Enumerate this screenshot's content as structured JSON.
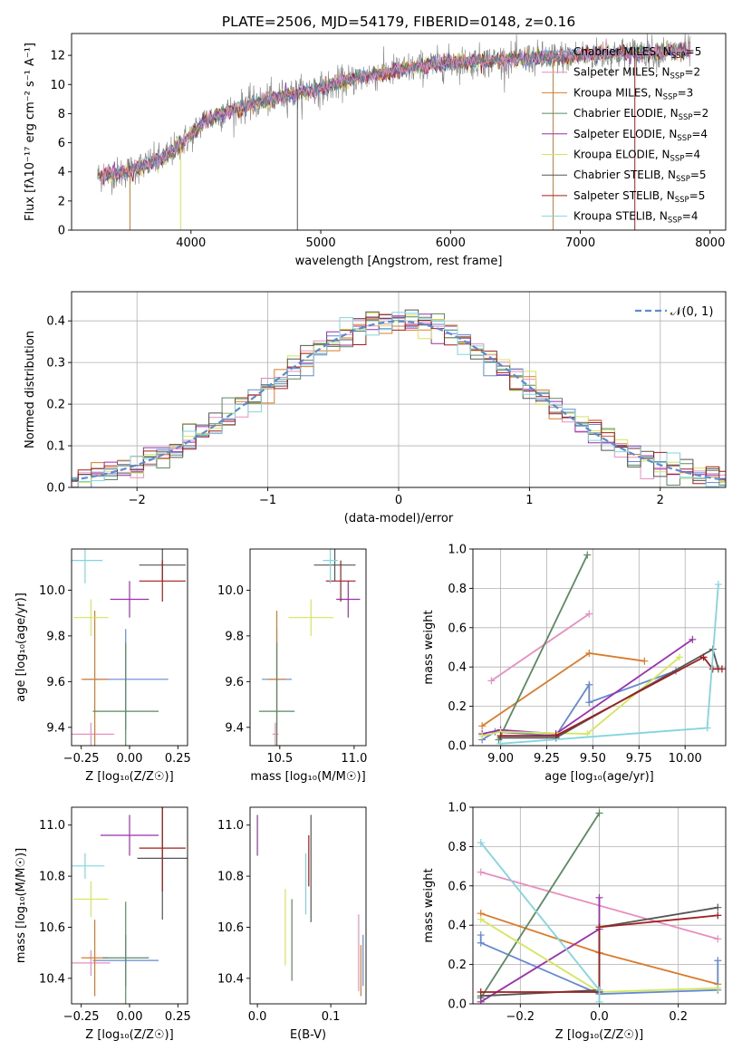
{
  "title": "PLATE=2506, MJD=54179, FIBERID=0148, z=0.16",
  "colors": [
    "#ee8a2e",
    "#db7b2a",
    "#e8e98a",
    "#2f7d4a",
    "#9b2fae",
    "#d4e65a",
    "#555555",
    "#a11e1e",
    "#7fd6e0",
    "#e88fbf",
    "#6488d6"
  ],
  "legend": [
    {
      "label": "Chabrier MILES, N",
      "sub": "SSP",
      "tail": "=5",
      "color": "#6488d6"
    },
    {
      "label": "Salpeter MILES, N",
      "sub": "SSP",
      "tail": "=2",
      "color": "#e88fbf"
    },
    {
      "label": "Kroupa MILES, N",
      "sub": "SSP",
      "tail": "=3",
      "color": "#db7b2a"
    },
    {
      "label": "Chabrier ELODIE, N",
      "sub": "SSP",
      "tail": "=2",
      "color": "#5a8a5f"
    },
    {
      "label": "Salpeter ELODIE, N",
      "sub": "SSP",
      "tail": "=4",
      "color": "#9b2fae"
    },
    {
      "label": "Kroupa ELODIE, N",
      "sub": "SSP",
      "tail": "=4",
      "color": "#d4e65a"
    },
    {
      "label": "Chabrier STELIB, N",
      "sub": "SSP",
      "tail": "=5",
      "color": "#555555"
    },
    {
      "label": "Salpeter STELIB, N",
      "sub": "SSP",
      "tail": "=5",
      "color": "#a11e1e"
    },
    {
      "label": "Kroupa STELIB, N",
      "sub": "SSP",
      "tail": "=4",
      "color": "#7fd6e0"
    }
  ],
  "chart_data": [
    {
      "type": "line",
      "id": "spectrum",
      "xlabel": "wavelength [Angstrom, rest frame]",
      "ylabel": "Flux [fλ10⁻¹⁷ erg cm⁻² s⁻¹ A⁻¹]",
      "xlim": [
        3080,
        8120
      ],
      "ylim": [
        0,
        13.5
      ],
      "xticks": [
        4000,
        5000,
        6000,
        7000,
        8000
      ],
      "yticks": [
        0,
        2,
        4,
        6,
        8,
        10,
        12
      ],
      "x_range": [
        3280,
        7850
      ],
      "continuum": [
        [
          3280,
          3.7
        ],
        [
          3500,
          4.0
        ],
        [
          3800,
          5.0
        ],
        [
          4000,
          6.5
        ],
        [
          4100,
          7.5
        ],
        [
          4400,
          8.5
        ],
        [
          4700,
          9.2
        ],
        [
          5000,
          9.7
        ],
        [
          5300,
          10.5
        ],
        [
          5600,
          11.0
        ],
        [
          6000,
          11.5
        ],
        [
          6500,
          11.7
        ],
        [
          7000,
          12.0
        ],
        [
          7500,
          12.2
        ],
        [
          7850,
          12.3
        ]
      ]
    },
    {
      "type": "line",
      "id": "residual-hist",
      "xlabel": "(data-model)/error",
      "ylabel": "Normed distribution",
      "xlim": [
        -2.5,
        2.5
      ],
      "ylim": [
        0,
        0.47
      ],
      "xticks": [
        -2,
        -1,
        0,
        1,
        2
      ],
      "xticklabels": [
        "−2",
        "−1",
        "0",
        "1",
        "2"
      ],
      "yticks": [
        0,
        0.1,
        0.2,
        0.3,
        0.4
      ],
      "yticklabels": [
        "0.0",
        "0.1",
        "0.2",
        "0.3",
        "0.4"
      ],
      "gauss_label": "𝒩(0, 1)",
      "bin_width": 0.1
    },
    {
      "type": "scatter",
      "id": "age-vs-Z",
      "xlabel": "Z [log₁₀(Z/Z☉)]",
      "ylabel": "age  [log₁₀(age/yr)]",
      "xlim": [
        -0.3,
        0.3
      ],
      "ylim": [
        9.32,
        10.18
      ],
      "xticks": [
        -0.25,
        0,
        0.25
      ],
      "xticklabels": [
        "−0.25",
        "0.00",
        "0.25"
      ],
      "yticks": [
        9.4,
        9.6,
        9.8,
        10.0
      ],
      "yticklabels": [
        "9.4",
        "9.6",
        "9.8",
        "10.0"
      ],
      "crosses": [
        {
          "x": -0.02,
          "y": 9.61,
          "xerr": 0.22,
          "yerr": 0.22,
          "c": "#6488d6"
        },
        {
          "x": -0.2,
          "y": 9.37,
          "xerr": 0.12,
          "yerr": 0.05,
          "c": "#e88fbf"
        },
        {
          "x": -0.18,
          "y": 9.61,
          "xerr": 0.07,
          "yerr": 0.3,
          "c": "#db7b2a"
        },
        {
          "x": -0.02,
          "y": 9.47,
          "xerr": 0.17,
          "yerr": 0.3,
          "c": "#5a8a5f"
        },
        {
          "x": 0.0,
          "y": 9.96,
          "xerr": 0.1,
          "yerr": 0.08,
          "c": "#9b2fae"
        },
        {
          "x": -0.2,
          "y": 9.88,
          "xerr": 0.09,
          "yerr": 0.08,
          "c": "#d4e65a"
        },
        {
          "x": 0.17,
          "y": 10.11,
          "xerr": 0.12,
          "yerr": 0.07,
          "c": "#555555"
        },
        {
          "x": 0.17,
          "y": 10.04,
          "xerr": 0.12,
          "yerr": 0.09,
          "c": "#a11e1e"
        },
        {
          "x": -0.23,
          "y": 10.13,
          "xerr": 0.09,
          "yerr": 0.1,
          "c": "#7fd6e0"
        }
      ]
    },
    {
      "type": "scatter",
      "id": "age-vs-mass",
      "xlabel": "mass [log₁₀(M/M☉)]",
      "ylabel": "",
      "xlim": [
        10.3,
        11.08
      ],
      "ylim": [
        9.32,
        10.18
      ],
      "xticks": [
        10.5,
        11.0
      ],
      "xticklabels": [
        "10.5",
        "11.0"
      ],
      "yticks": [
        9.4,
        9.6,
        9.8,
        10.0
      ],
      "yticklabels": [
        "9.4",
        "9.6",
        "9.8",
        "10.0"
      ],
      "crosses": [
        {
          "x": 10.48,
          "y": 9.61,
          "xerr": 0.1,
          "yerr": 0.22,
          "c": "#6488d6"
        },
        {
          "x": 10.47,
          "y": 9.37,
          "xerr": 0.02,
          "yerr": 0.05,
          "c": "#e88fbf"
        },
        {
          "x": 10.48,
          "y": 9.61,
          "xerr": 0.06,
          "yerr": 0.3,
          "c": "#db7b2a"
        },
        {
          "x": 10.48,
          "y": 9.47,
          "xerr": 0.12,
          "yerr": 0.3,
          "c": "#5a8a5f"
        },
        {
          "x": 10.96,
          "y": 9.96,
          "xerr": 0.08,
          "yerr": 0.08,
          "c": "#9b2fae"
        },
        {
          "x": 10.71,
          "y": 9.88,
          "xerr": 0.15,
          "yerr": 0.08,
          "c": "#d4e65a"
        },
        {
          "x": 10.87,
          "y": 10.11,
          "xerr": 0.14,
          "yerr": 0.07,
          "c": "#555555"
        },
        {
          "x": 10.91,
          "y": 10.04,
          "xerr": 0.1,
          "yerr": 0.09,
          "c": "#a11e1e"
        },
        {
          "x": 10.84,
          "y": 10.13,
          "xerr": 0.05,
          "yerr": 0.1,
          "c": "#7fd6e0"
        }
      ]
    },
    {
      "type": "line",
      "id": "weight-vs-age",
      "xlabel": "age  [log₁₀(age/yr)]",
      "ylabel": "mass weight",
      "xlim": [
        8.85,
        10.22
      ],
      "ylim": [
        0,
        1
      ],
      "xticks": [
        9.0,
        9.25,
        9.5,
        9.75,
        10.0
      ],
      "xticklabels": [
        "9.00",
        "9.25",
        "9.50",
        "9.75",
        "10.00"
      ],
      "yticks": [
        0,
        0.2,
        0.4,
        0.6,
        0.8,
        1.0
      ],
      "yticklabels": [
        "0.0",
        "0.2",
        "0.4",
        "0.6",
        "0.8",
        "1.0"
      ],
      "series": [
        {
          "c": "#e88fbf",
          "pts": [
            [
              8.95,
              0.33
            ],
            [
              9.48,
              0.67
            ]
          ]
        },
        {
          "c": "#db7b2a",
          "pts": [
            [
              8.9,
              0.1
            ],
            [
              9.48,
              0.47
            ],
            [
              9.78,
              0.43
            ]
          ]
        },
        {
          "c": "#6488d6",
          "pts": [
            [
              8.9,
              0.03
            ],
            [
              8.97,
              0.07
            ],
            [
              9.3,
              0.05
            ],
            [
              9.48,
              0.31
            ],
            [
              9.48,
              0.22
            ],
            [
              9.95,
              0.38
            ]
          ]
        },
        {
          "c": "#5a8a5f",
          "pts": [
            [
              8.99,
              0.03
            ],
            [
              9.47,
              0.97
            ]
          ]
        },
        {
          "c": "#9b2fae",
          "pts": [
            [
              8.9,
              0.06
            ],
            [
              9.0,
              0.08
            ],
            [
              9.3,
              0.06
            ],
            [
              10.04,
              0.54
            ]
          ]
        },
        {
          "c": "#d4e65a",
          "pts": [
            [
              8.9,
              0.05
            ],
            [
              9.0,
              0.07
            ],
            [
              9.47,
              0.06
            ],
            [
              9.97,
              0.45
            ]
          ]
        },
        {
          "c": "#555555",
          "pts": [
            [
              9.0,
              0.04
            ],
            [
              9.3,
              0.04
            ],
            [
              10.15,
              0.49
            ],
            [
              10.18,
              0.39
            ]
          ]
        },
        {
          "c": "#a11e1e",
          "pts": [
            [
              9.0,
              0.05
            ],
            [
              9.3,
              0.05
            ],
            [
              10.1,
              0.45
            ],
            [
              10.15,
              0.39
            ],
            [
              10.2,
              0.39
            ]
          ]
        },
        {
          "c": "#7fd6e0",
          "pts": [
            [
              9.0,
              0.01
            ],
            [
              10.12,
              0.09
            ],
            [
              10.18,
              0.82
            ]
          ]
        }
      ]
    },
    {
      "type": "scatter",
      "id": "mass-vs-Z",
      "xlabel": "Z [log₁₀(Z/Z☉)]",
      "ylabel": "mass [log₁₀(M/M☉)]",
      "xlim": [
        -0.3,
        0.3
      ],
      "ylim": [
        10.3,
        11.07
      ],
      "xticks": [
        -0.25,
        0,
        0.25
      ],
      "xticklabels": [
        "−0.25",
        "0.00",
        "0.25"
      ],
      "yticks": [
        10.4,
        10.6,
        10.8,
        11.0
      ],
      "yticklabels": [
        "10.4",
        "10.6",
        "10.8",
        "11.0"
      ],
      "crosses": [
        {
          "x": -0.02,
          "y": 10.47,
          "xerr": 0.17,
          "yerr": 0.1,
          "c": "#6488d6"
        },
        {
          "x": -0.2,
          "y": 10.46,
          "xerr": 0.1,
          "yerr": 0.05,
          "c": "#e88fbf"
        },
        {
          "x": -0.18,
          "y": 10.48,
          "xerr": 0.07,
          "yerr": 0.15,
          "c": "#db7b2a"
        },
        {
          "x": -0.02,
          "y": 10.48,
          "xerr": 0.12,
          "yerr": 0.22,
          "c": "#5a8a5f"
        },
        {
          "x": 0.0,
          "y": 10.96,
          "xerr": 0.15,
          "yerr": 0.08,
          "c": "#9b2fae"
        },
        {
          "x": -0.2,
          "y": 10.71,
          "xerr": 0.09,
          "yerr": 0.07,
          "c": "#d4e65a"
        },
        {
          "x": 0.17,
          "y": 10.87,
          "xerr": 0.13,
          "yerr": 0.24,
          "c": "#555555"
        },
        {
          "x": 0.17,
          "y": 10.91,
          "xerr": 0.12,
          "yerr": 0.17,
          "c": "#a11e1e"
        },
        {
          "x": -0.23,
          "y": 10.84,
          "xerr": 0.1,
          "yerr": 0.05,
          "c": "#7fd6e0"
        }
      ]
    },
    {
      "type": "scatter",
      "id": "mass-vs-ebv",
      "xlabel": "E(B-V)",
      "ylabel": "",
      "xlim": [
        -0.01,
        0.148
      ],
      "ylim": [
        10.3,
        11.07
      ],
      "xticks": [
        0,
        0.1
      ],
      "xticklabels": [
        "0.0",
        "0.1"
      ],
      "yticks": [
        10.4,
        10.6,
        10.8,
        11.0
      ],
      "yticklabels": [
        "10.4",
        "10.6",
        "10.8",
        "11.0"
      ],
      "crosses": [
        {
          "x": 0.0,
          "y": 10.96,
          "xerr": 0,
          "yerr": 0.08,
          "c": "#9b2fae"
        },
        {
          "x": 0.038,
          "y": 10.6,
          "xerr": 0,
          "yerr": 0.15,
          "c": "#d4e65a"
        },
        {
          "x": 0.047,
          "y": 10.55,
          "xerr": 0,
          "yerr": 0.16,
          "c": "#5a8a5f"
        },
        {
          "x": 0.066,
          "y": 10.77,
          "xerr": 0,
          "yerr": 0.12,
          "c": "#7fd6e0"
        },
        {
          "x": 0.07,
          "y": 10.86,
          "xerr": 0,
          "yerr": 0.1,
          "c": "#a11e1e"
        },
        {
          "x": 0.073,
          "y": 10.83,
          "xerr": 0,
          "yerr": 0.21,
          "c": "#555555"
        },
        {
          "x": 0.138,
          "y": 10.5,
          "xerr": 0,
          "yerr": 0.15,
          "c": "#e88fbf"
        },
        {
          "x": 0.141,
          "y": 10.43,
          "xerr": 0,
          "yerr": 0.1,
          "c": "#db7b2a"
        },
        {
          "x": 0.144,
          "y": 10.47,
          "xerr": 0,
          "yerr": 0.1,
          "c": "#6488d6"
        }
      ]
    },
    {
      "type": "line",
      "id": "weight-vs-Z",
      "xlabel": "Z [log₁₀(Z/Z☉)]",
      "ylabel": "mass weight",
      "xlim": [
        -0.32,
        0.32
      ],
      "ylim": [
        0,
        1
      ],
      "xticks": [
        -0.2,
        0,
        0.2
      ],
      "xticklabels": [
        "−0.2",
        "0.0",
        "0.2"
      ],
      "yticks": [
        0,
        0.2,
        0.4,
        0.6,
        0.8,
        1.0
      ],
      "yticklabels": [
        "0.0",
        "0.2",
        "0.4",
        "0.6",
        "0.8",
        "1.0"
      ],
      "series": [
        {
          "c": "#e88fbf",
          "pts": [
            [
              -0.3,
              0.67
            ],
            [
              0.3,
              0.33
            ]
          ]
        },
        {
          "c": "#db7b2a",
          "pts": [
            [
              -0.3,
              0.46
            ],
            [
              0.0,
              0.26
            ],
            [
              0.3,
              0.1
            ]
          ]
        },
        {
          "c": "#6488d6",
          "pts": [
            [
              -0.3,
              0.35
            ],
            [
              -0.3,
              0.31
            ],
            [
              0.0,
              0.05
            ],
            [
              0.3,
              0.07
            ],
            [
              0.3,
              0.22
            ]
          ]
        },
        {
          "c": "#5a8a5f",
          "pts": [
            [
              -0.3,
              0.03
            ],
            [
              0.0,
              0.97
            ]
          ]
        },
        {
          "c": "#9b2fae",
          "pts": [
            [
              -0.3,
              0.01
            ],
            [
              0.0,
              0.38
            ],
            [
              0.0,
              0.54
            ]
          ]
        },
        {
          "c": "#d4e65a",
          "pts": [
            [
              -0.3,
              0.43
            ],
            [
              0.0,
              0.06
            ],
            [
              0.3,
              0.08
            ]
          ]
        },
        {
          "c": "#555555",
          "pts": [
            [
              -0.3,
              0.04
            ],
            [
              0.0,
              0.07
            ],
            [
              0.0,
              0.39
            ],
            [
              0.3,
              0.49
            ]
          ]
        },
        {
          "c": "#a11e1e",
          "pts": [
            [
              -0.3,
              0.06
            ],
            [
              0.0,
              0.06
            ],
            [
              0.0,
              0.39
            ],
            [
              0.3,
              0.45
            ]
          ]
        },
        {
          "c": "#7fd6e0",
          "pts": [
            [
              -0.3,
              0.82
            ],
            [
              0.0,
              0.07
            ],
            [
              0.0,
              0.01
            ]
          ]
        }
      ]
    }
  ]
}
